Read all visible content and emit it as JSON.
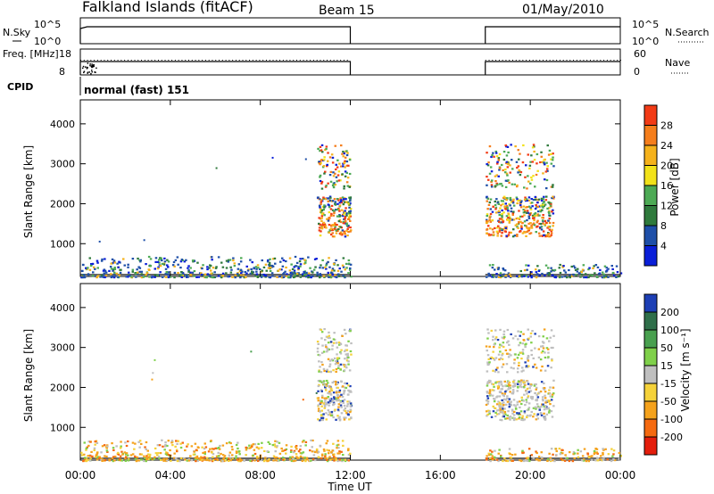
{
  "header": {
    "station": "Falkland Islands (fitACF)",
    "beam": "Beam 15",
    "date": "01/May/2010"
  },
  "mode_label": "normal (fast) 151",
  "chart_data": {
    "type": "heatmap",
    "x_unit": "hours UT",
    "xlabel": "Time UT",
    "xticks": [
      "00:00",
      "04:00",
      "08:00",
      "12:00",
      "16:00",
      "20:00",
      "00:00"
    ],
    "xtick_hours": [
      0,
      4,
      8,
      12,
      16,
      20,
      24
    ],
    "xlim": [
      0,
      24
    ],
    "data_gap_hours": [
      12,
      18
    ],
    "status_panels": [
      {
        "left_label": "N.Sky",
        "right_label": "N.Search",
        "left_ticks": [
          "10^5",
          "10^0"
        ],
        "right_ticks": [
          "10^5",
          "10^0"
        ]
      },
      {
        "left_label": "Freq. [MHz]",
        "right_label": "Nave",
        "left_ticks": [
          "18",
          "8"
        ],
        "right_ticks": [
          "60",
          "0"
        ]
      },
      {
        "left_label": "CPID"
      }
    ],
    "panels": [
      {
        "name": "power",
        "ylabel": "Slant Range [km]",
        "yticks": [
          1000,
          2000,
          3000,
          4000
        ],
        "ylim": [
          180,
          4600
        ],
        "colorbar_label": "Power [dB]",
        "colorbar_ticks": [
          "4",
          "8",
          "12",
          "16",
          "20",
          "24",
          "28"
        ],
        "colors": [
          "#0a1fd8",
          "#1e4fa8",
          "#2f7a3c",
          "#4daa55",
          "#f2e21a",
          "#f5b21c",
          "#f57e1c",
          "#f23b16"
        ]
      },
      {
        "name": "velocity",
        "ylabel": "Slant Range [km]",
        "yticks": [
          1000,
          2000,
          3000,
          4000
        ],
        "ylim": [
          180,
          4600
        ],
        "colorbar_label": "Velocity [m s⁻¹]",
        "colorbar_ticks": [
          "200",
          "100",
          "50",
          "15",
          "-15",
          "-50",
          "-100",
          "-200"
        ],
        "colors": [
          "#1d3fb5",
          "#2f6f4a",
          "#49a04f",
          "#7fd04a",
          "#bfbfbf",
          "#f5d23a",
          "#f5a21c",
          "#f56a10",
          "#e41e0c"
        ]
      }
    ],
    "scatter_regions": [
      {
        "description_id": "ground-near-0-12",
        "hours": [
          0,
          12
        ],
        "range_km": [
          180,
          700
        ]
      },
      {
        "description_id": "ground-near-18-24",
        "hours": [
          18,
          24
        ],
        "range_km": [
          180,
          500
        ]
      },
      {
        "description_id": "echo-11-12",
        "hours": [
          10.5,
          12
        ],
        "range_km": [
          1200,
          3500
        ]
      },
      {
        "description_id": "echo-18-21",
        "hours": [
          18,
          21
        ],
        "range_km": [
          1100,
          3500
        ]
      }
    ]
  }
}
